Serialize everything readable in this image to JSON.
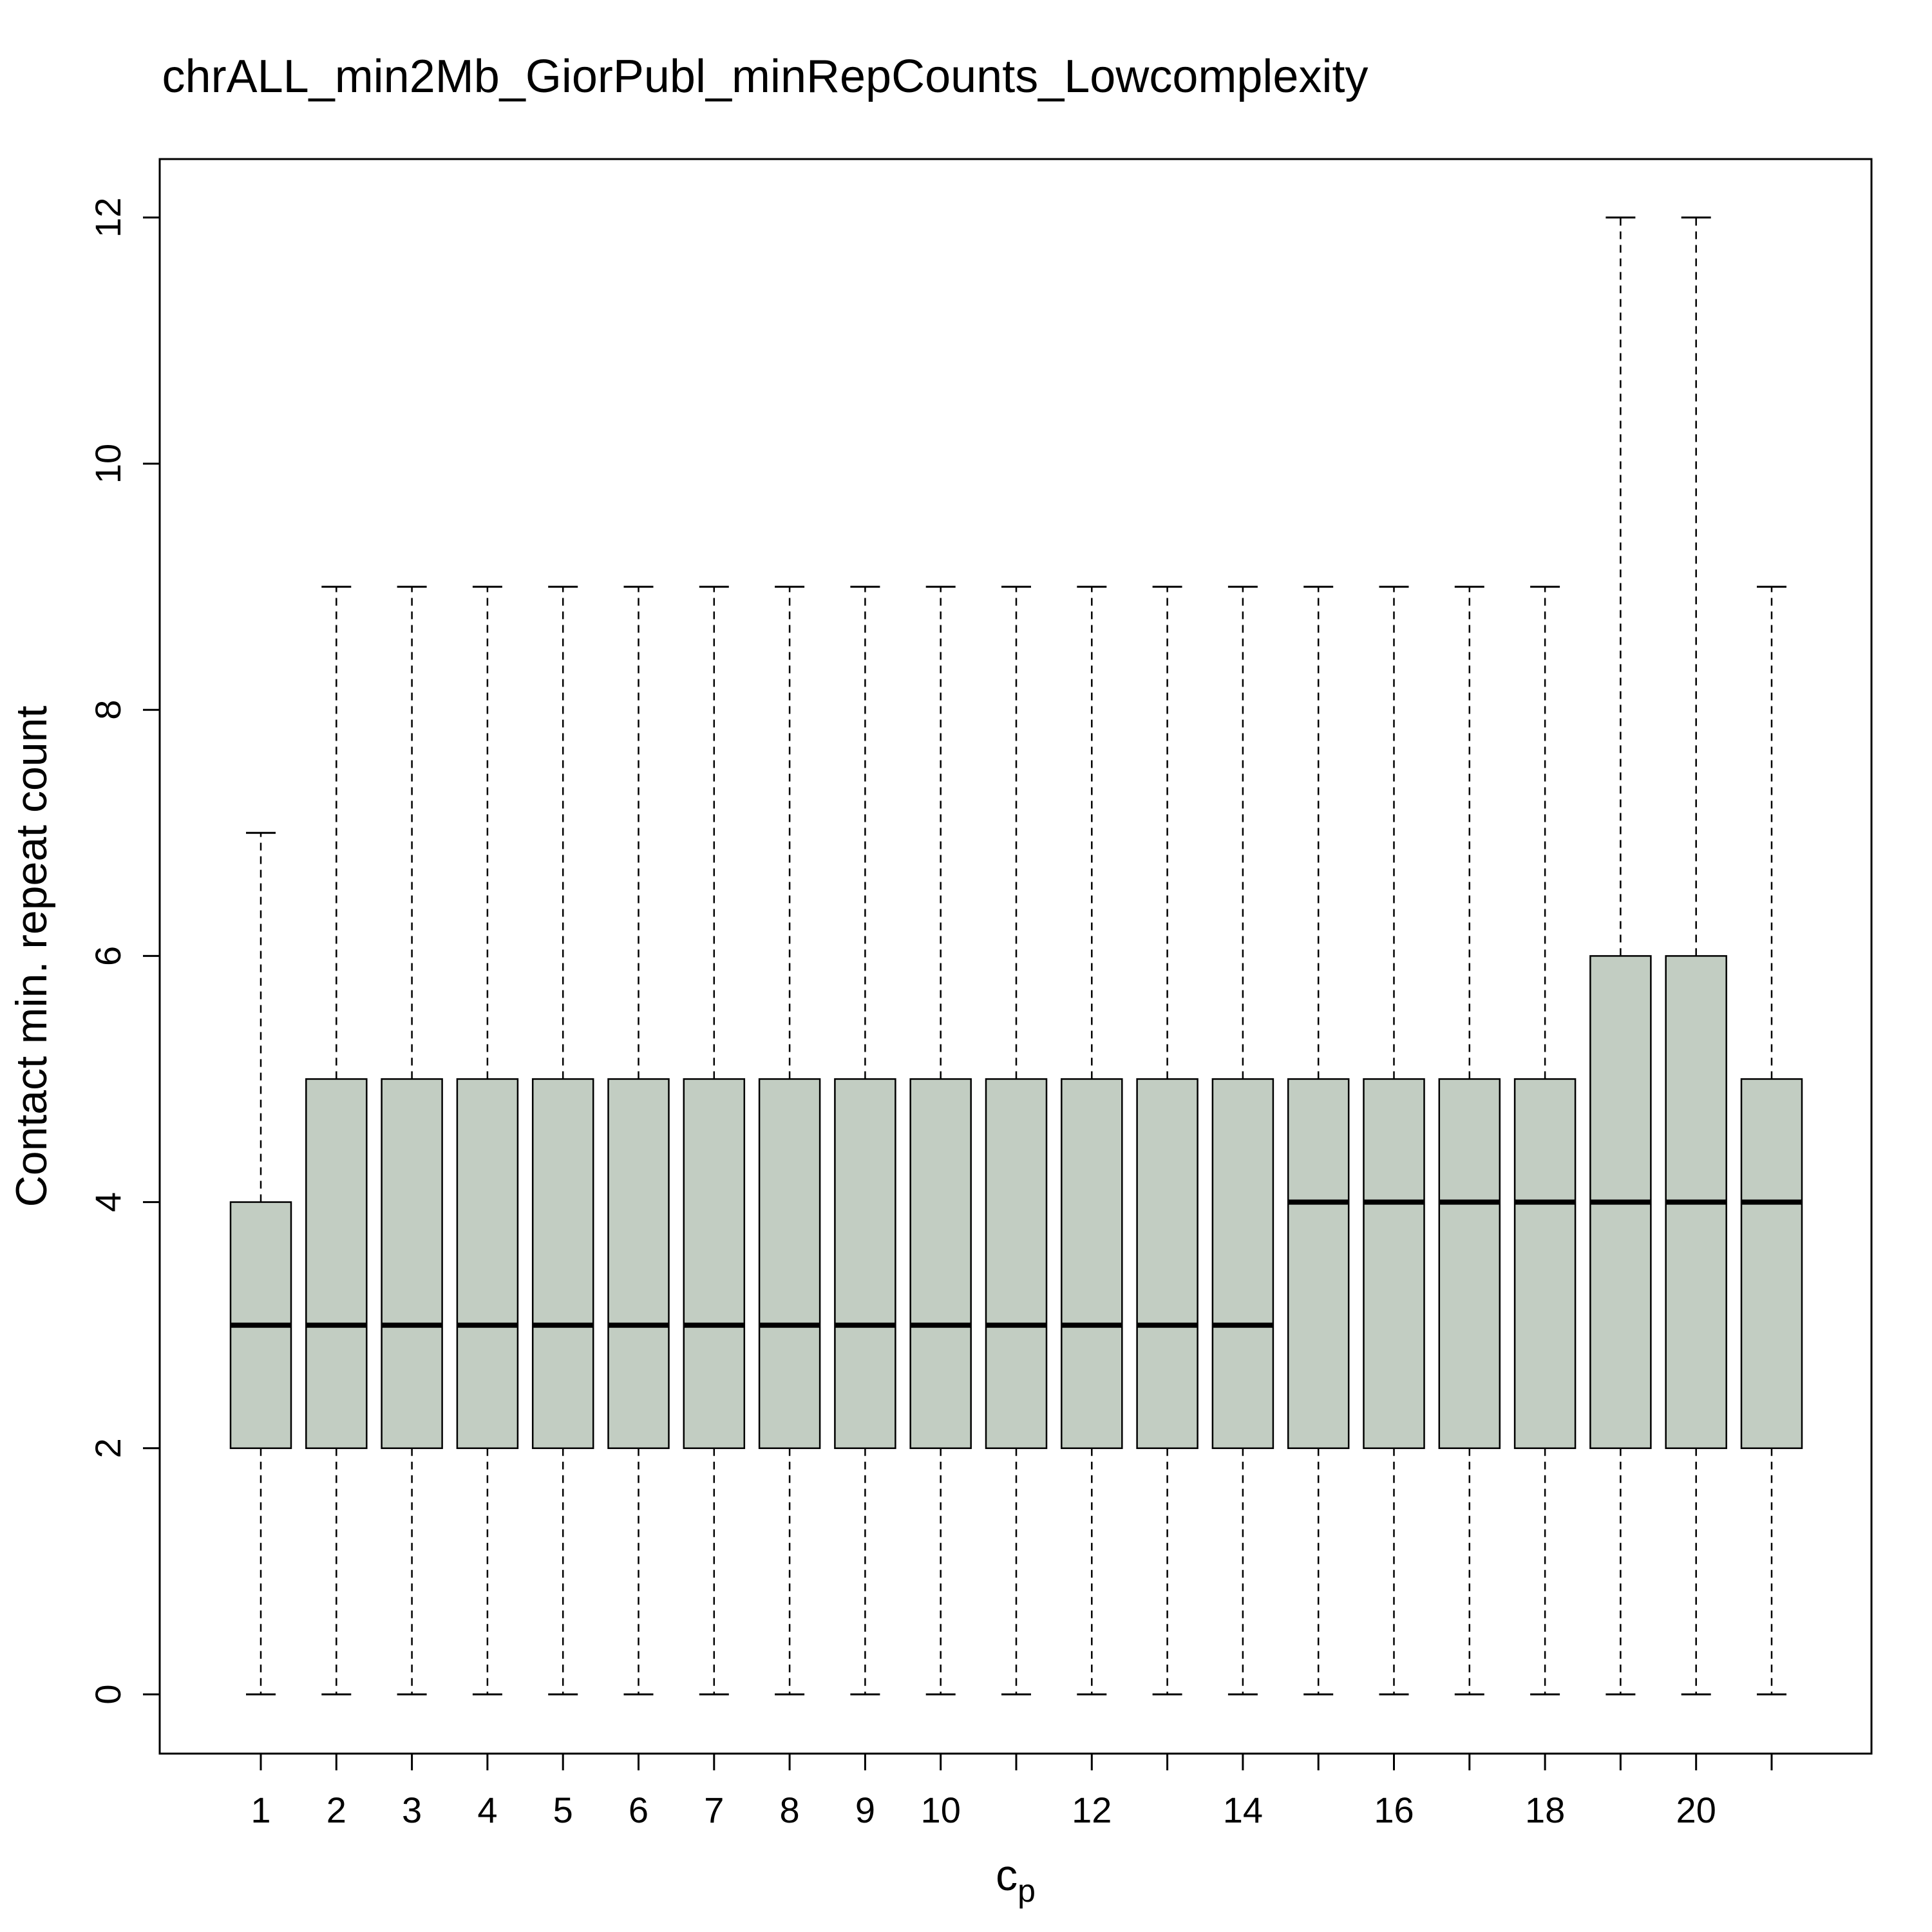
{
  "chart_data": {
    "type": "box",
    "title": "chrALL_min2Mb_GiorPubl_minRepCounts_Lowcomplexity",
    "xlabel": "c",
    "xlabel_subscript": "p",
    "ylabel": "Contact min. repeat count",
    "ylim": [
      -0.5,
      12.5
    ],
    "yticks": [
      0,
      2,
      4,
      6,
      8,
      10,
      12
    ],
    "categories": [
      "1",
      "2",
      "3",
      "4",
      "5",
      "6",
      "7",
      "8",
      "9",
      "10",
      "11",
      "12",
      "13",
      "14",
      "15",
      "16",
      "17",
      "18",
      "19",
      "20",
      "21"
    ],
    "x_tick_labels": [
      "1",
      "2",
      "3",
      "4",
      "5",
      "6",
      "7",
      "8",
      "9",
      "10",
      "",
      "12",
      "",
      "14",
      "",
      "16",
      "",
      "18",
      "",
      "20",
      ""
    ],
    "box_fill": "#c2cdc2",
    "boxes": [
      {
        "min": 0,
        "q1": 2,
        "median": 3,
        "q3": 4,
        "max": 7
      },
      {
        "min": 0,
        "q1": 2,
        "median": 3,
        "q3": 5,
        "max": 9
      },
      {
        "min": 0,
        "q1": 2,
        "median": 3,
        "q3": 5,
        "max": 9
      },
      {
        "min": 0,
        "q1": 2,
        "median": 3,
        "q3": 5,
        "max": 9
      },
      {
        "min": 0,
        "q1": 2,
        "median": 3,
        "q3": 5,
        "max": 9
      },
      {
        "min": 0,
        "q1": 2,
        "median": 3,
        "q3": 5,
        "max": 9
      },
      {
        "min": 0,
        "q1": 2,
        "median": 3,
        "q3": 5,
        "max": 9
      },
      {
        "min": 0,
        "q1": 2,
        "median": 3,
        "q3": 5,
        "max": 9
      },
      {
        "min": 0,
        "q1": 2,
        "median": 3,
        "q3": 5,
        "max": 9
      },
      {
        "min": 0,
        "q1": 2,
        "median": 3,
        "q3": 5,
        "max": 9
      },
      {
        "min": 0,
        "q1": 2,
        "median": 3,
        "q3": 5,
        "max": 9
      },
      {
        "min": 0,
        "q1": 2,
        "median": 3,
        "q3": 5,
        "max": 9
      },
      {
        "min": 0,
        "q1": 2,
        "median": 3,
        "q3": 5,
        "max": 9
      },
      {
        "min": 0,
        "q1": 2,
        "median": 3,
        "q3": 5,
        "max": 9
      },
      {
        "min": 0,
        "q1": 2,
        "median": 4,
        "q3": 5,
        "max": 9
      },
      {
        "min": 0,
        "q1": 2,
        "median": 4,
        "q3": 5,
        "max": 9
      },
      {
        "min": 0,
        "q1": 2,
        "median": 4,
        "q3": 5,
        "max": 9
      },
      {
        "min": 0,
        "q1": 2,
        "median": 4,
        "q3": 5,
        "max": 9
      },
      {
        "min": 0,
        "q1": 2,
        "median": 4,
        "q3": 6,
        "max": 12
      },
      {
        "min": 0,
        "q1": 2,
        "median": 4,
        "q3": 6,
        "max": 12
      },
      {
        "min": 0,
        "q1": 2,
        "median": 4,
        "q3": 5,
        "max": 9
      }
    ]
  }
}
